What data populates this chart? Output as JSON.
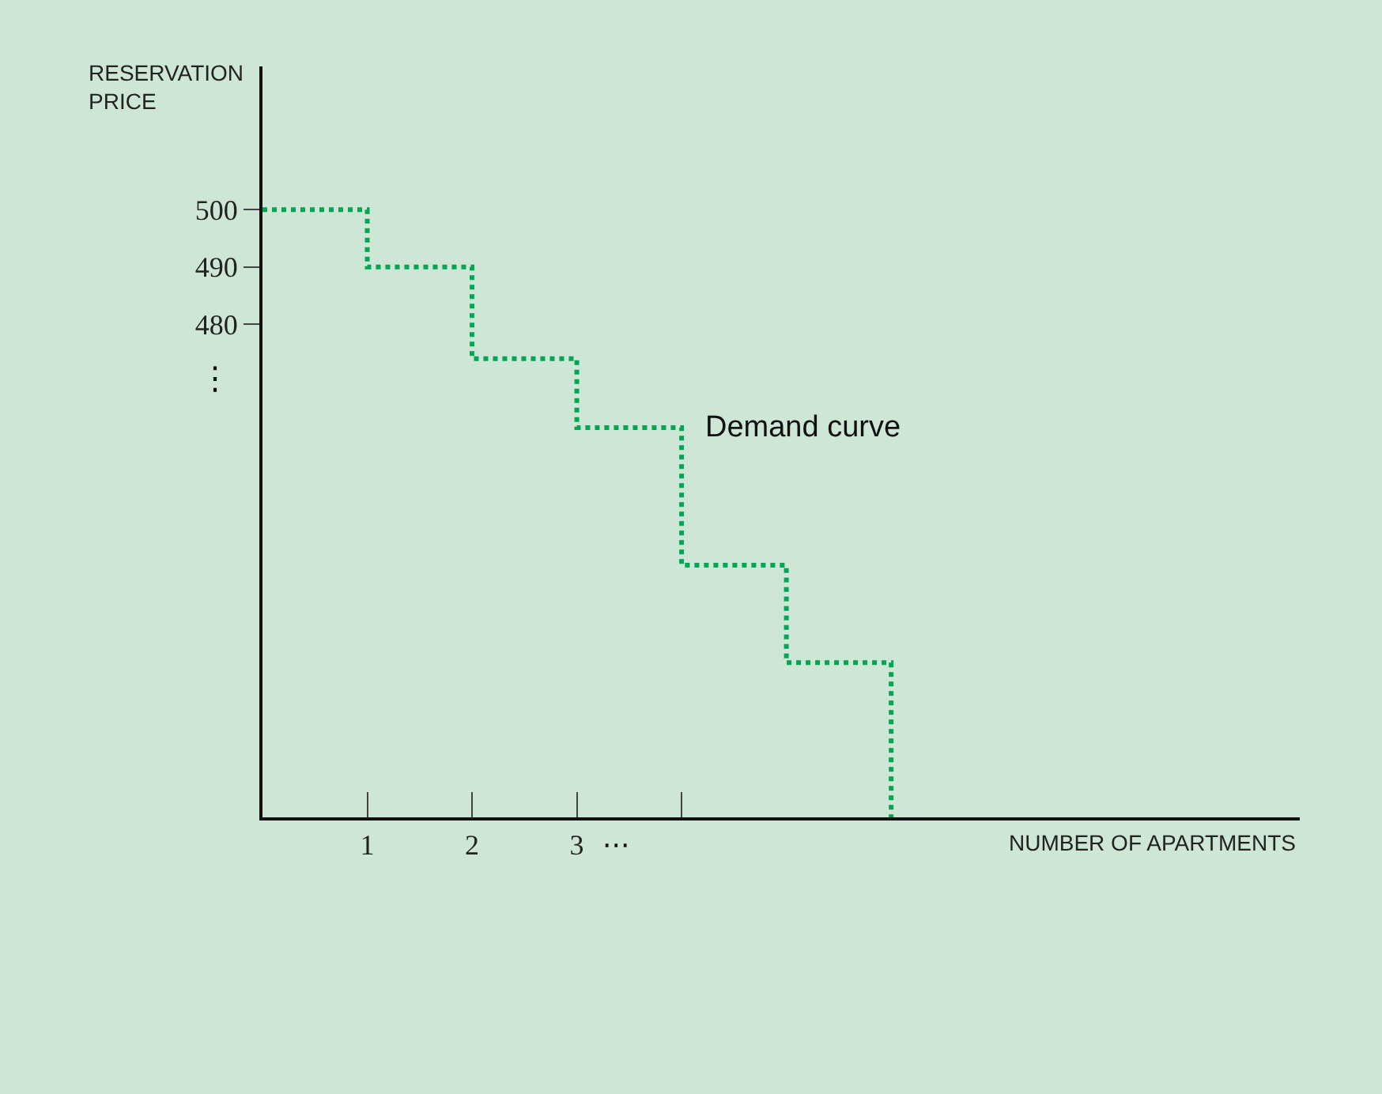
{
  "chart_data": {
    "type": "step",
    "ylabel": "RESERVATION\nPRICE",
    "xlabel": "NUMBER OF APARTMENTS",
    "x": [
      0,
      1,
      2,
      3,
      4,
      5,
      6
    ],
    "series": [
      {
        "color": "#00a651",
        "values": [
          500,
          490,
          474,
          462,
          438,
          421,
          394
        ]
      }
    ],
    "xlim": [
      0,
      9.9
    ],
    "ylim": [
      394,
      525
    ],
    "xticks": [
      1,
      2,
      3,
      {
        "value": 4,
        "label": null
      }
    ],
    "yticks": [
      480,
      490,
      500
    ],
    "annotations": [
      "Demand curve",
      "···",
      "⋮"
    ],
    "line_style": "dotted",
    "marker": "none",
    "grid": false
  }
}
